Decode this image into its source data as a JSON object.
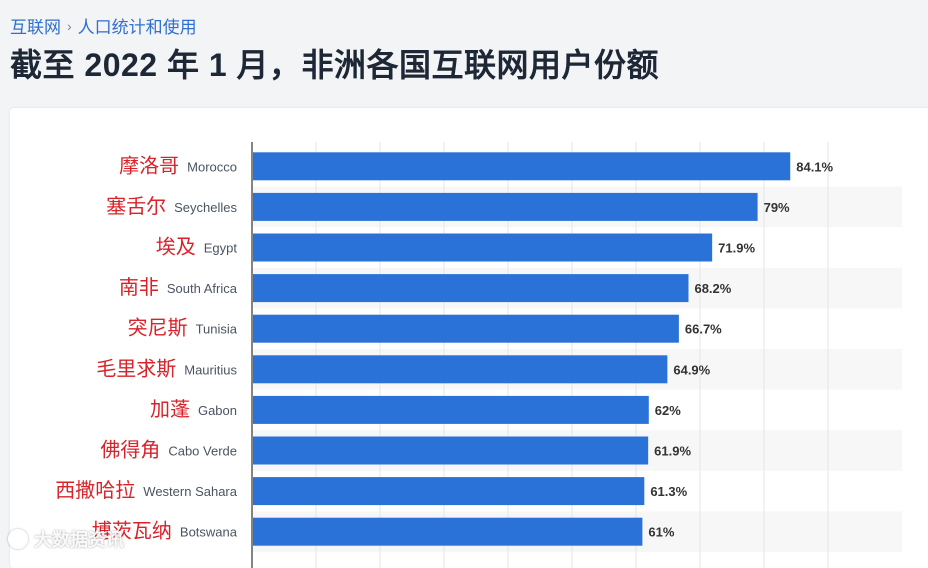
{
  "breadcrumb": {
    "items": [
      "互联网",
      "人口统计和使用"
    ],
    "separator": "›"
  },
  "page_title": "截至 2022 年 1 月，非洲各国互联网用户份额",
  "watermark": "大数据资讯",
  "colors": {
    "bar": "#2a72d8",
    "chinese_label": "#d9222a",
    "english_label": "#4a5462",
    "value_label": "#333333",
    "alt_row": "#f7f7f7",
    "grid": "#e1e4e8"
  },
  "chart_data": {
    "type": "bar",
    "orientation": "horizontal",
    "title": "截至 2022 年 1 月，非洲各国互联网用户份额",
    "xlim": [
      0,
      100
    ],
    "grid": true,
    "categories": [
      {
        "cn": "摩洛哥",
        "en": "Morocco",
        "value": 84.1,
        "label": "84.1%"
      },
      {
        "cn": "塞舌尔",
        "en": "Seychelles",
        "value": 79,
        "label": "79%"
      },
      {
        "cn": "埃及",
        "en": "Egypt",
        "value": 71.9,
        "label": "71.9%"
      },
      {
        "cn": "南非",
        "en": "South Africa",
        "value": 68.2,
        "label": "68.2%"
      },
      {
        "cn": "突尼斯",
        "en": "Tunisia",
        "value": 66.7,
        "label": "66.7%"
      },
      {
        "cn": "毛里求斯",
        "en": "Mauritius",
        "value": 64.9,
        "label": "64.9%"
      },
      {
        "cn": "加蓬",
        "en": "Gabon",
        "value": 62,
        "label": "62%"
      },
      {
        "cn": "佛得角",
        "en": "Cabo Verde",
        "value": 61.9,
        "label": "61.9%"
      },
      {
        "cn": "西撒哈拉",
        "en": "Western Sahara",
        "value": 61.3,
        "label": "61.3%"
      },
      {
        "cn": "博茨瓦纳",
        "en": "Botswana",
        "value": 61,
        "label": "61%"
      }
    ]
  }
}
